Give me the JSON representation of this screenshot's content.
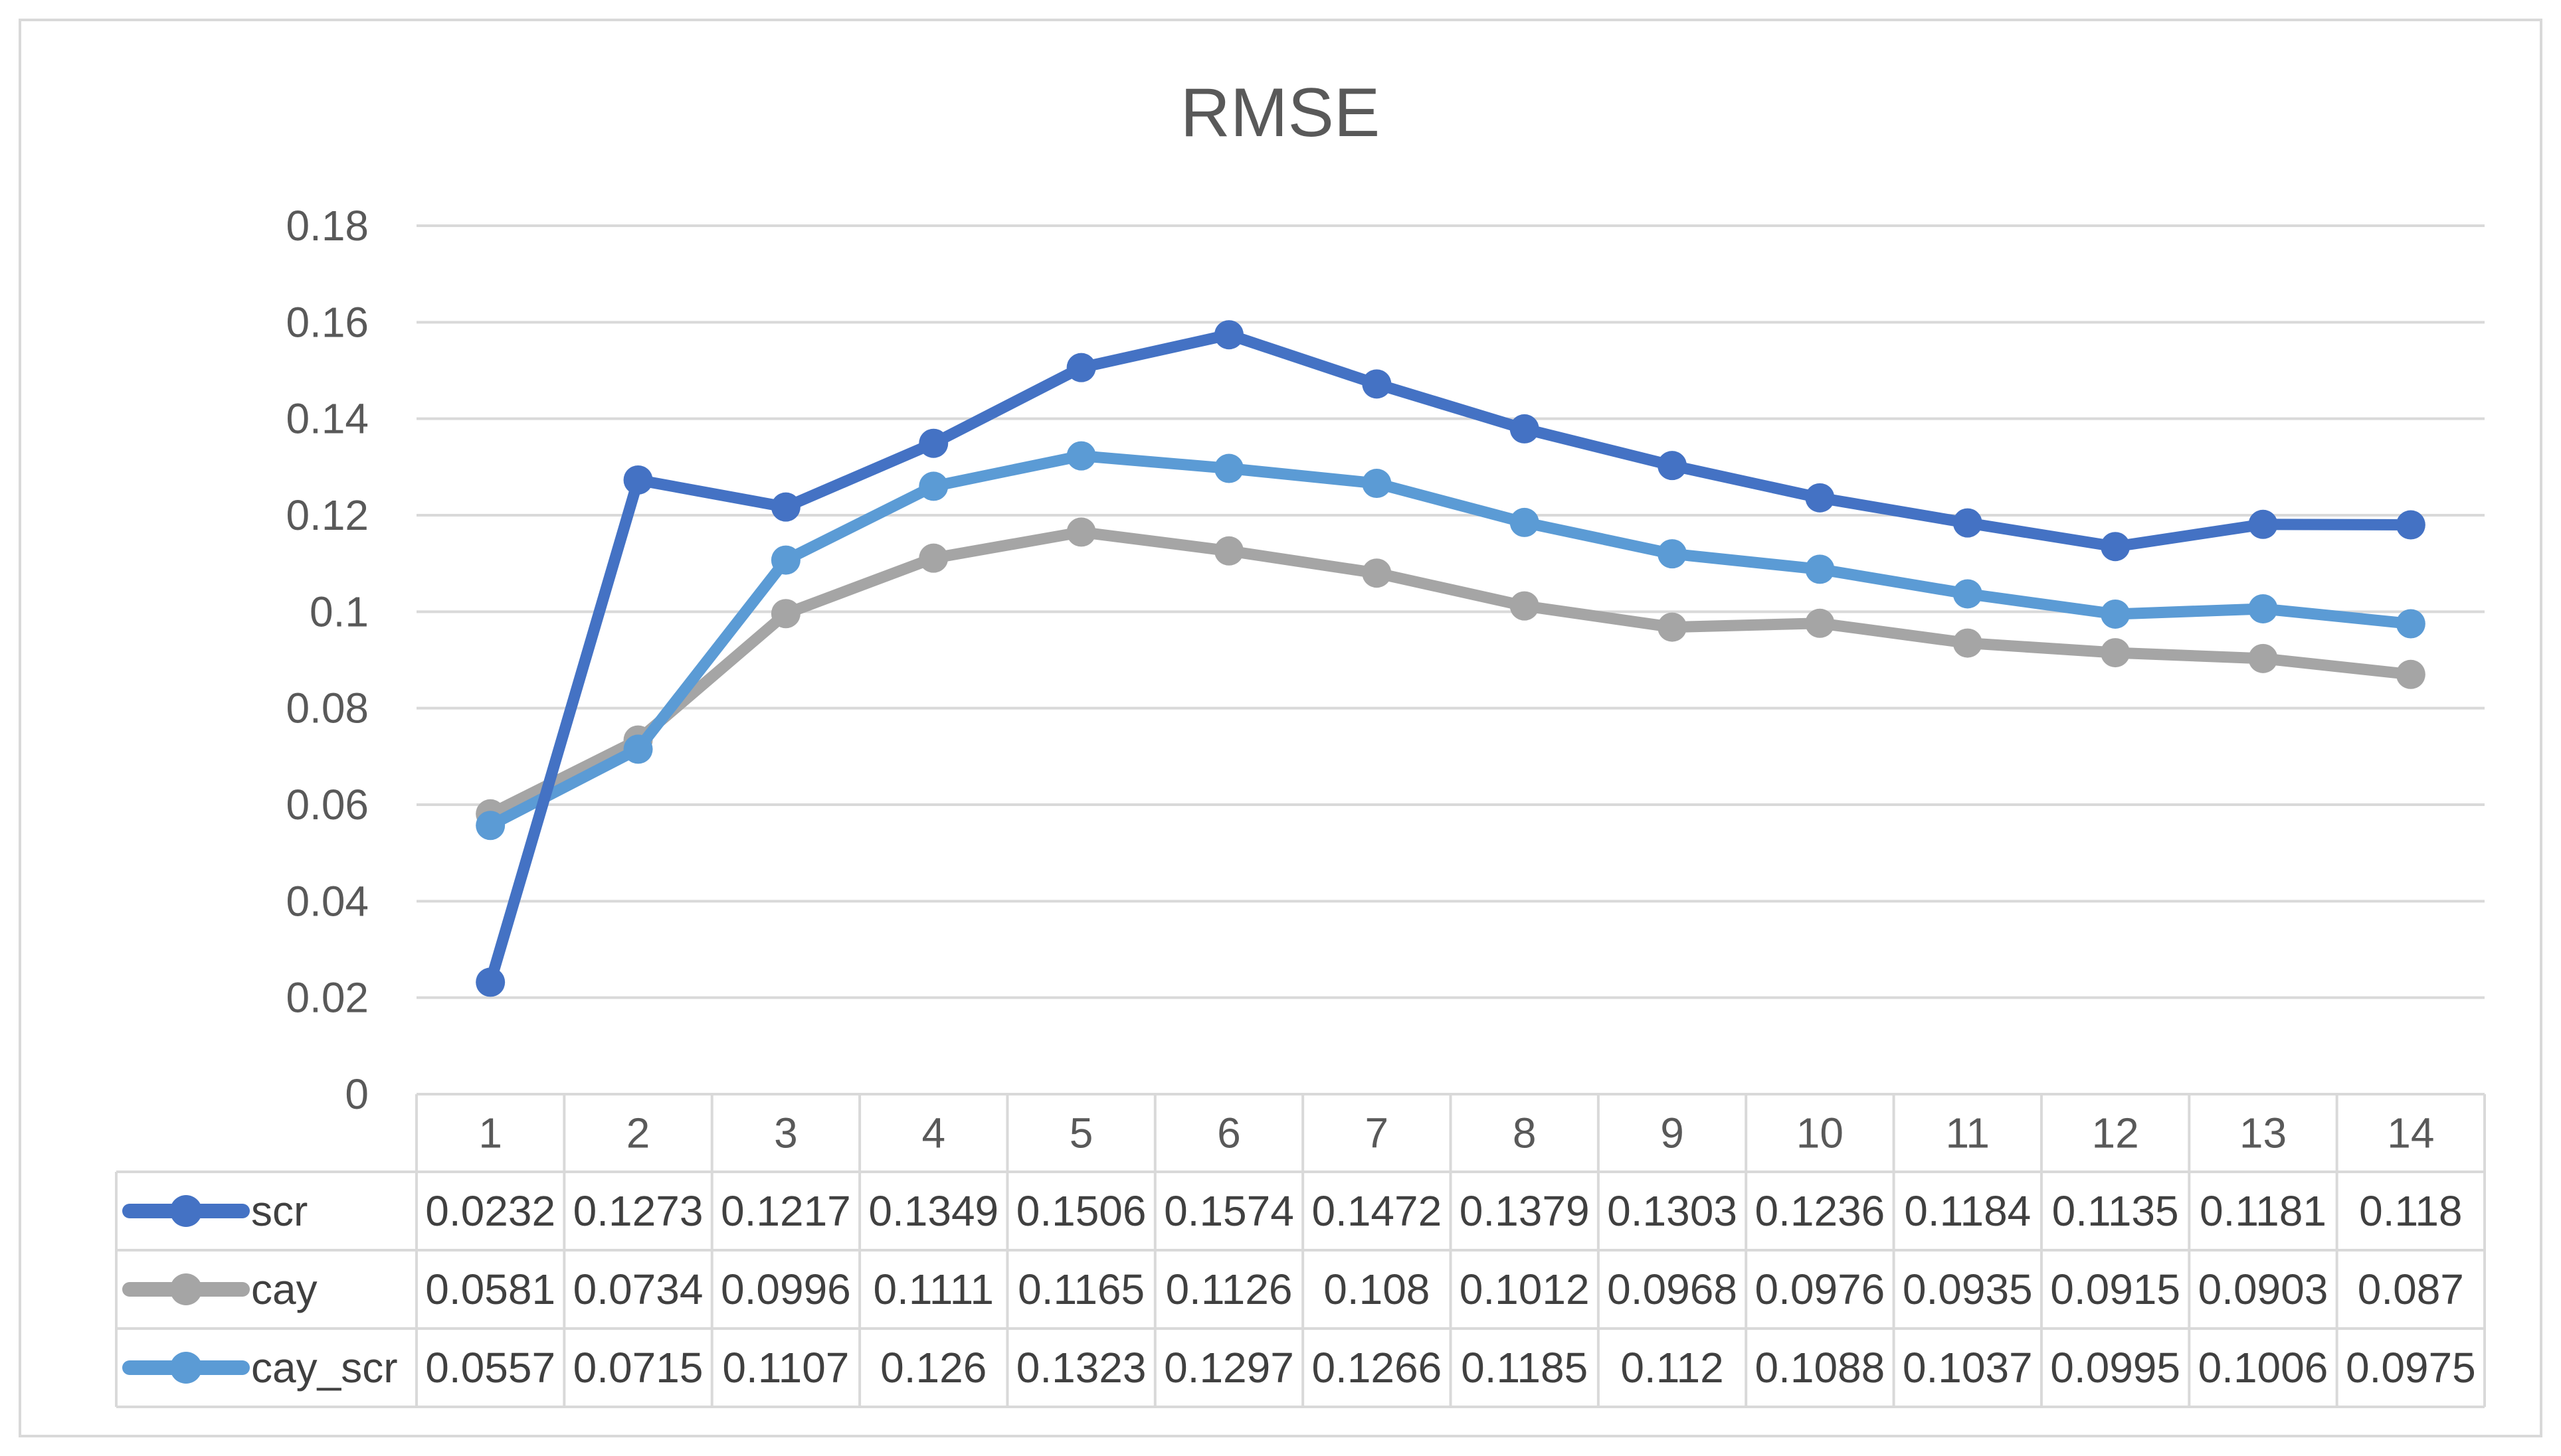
{
  "chart_data": {
    "type": "line",
    "title": "RMSE",
    "xlabel": "",
    "ylabel": "",
    "ylim": [
      0,
      0.18
    ],
    "yticks": [
      0,
      0.02,
      0.04,
      0.06,
      0.08,
      0.1,
      0.12,
      0.14,
      0.16,
      0.18
    ],
    "ytick_labels": [
      "0",
      "0.02",
      "0.04",
      "0.06",
      "0.08",
      "0.1",
      "0.12",
      "0.14",
      "0.16",
      "0.18"
    ],
    "grid": true,
    "legend": "data-table-left",
    "categories": [
      "1",
      "2",
      "3",
      "4",
      "5",
      "6",
      "7",
      "8",
      "9",
      "10",
      "11",
      "12",
      "13",
      "14"
    ],
    "series": [
      {
        "name": "scr",
        "color": "#4472C4",
        "values": [
          0.0232,
          0.1273,
          0.1217,
          0.1349,
          0.1506,
          0.1574,
          0.1472,
          0.1379,
          0.1303,
          0.1236,
          0.1184,
          0.1135,
          0.1181,
          0.118
        ],
        "labels": [
          "0.0232",
          "0.1273",
          "0.1217",
          "0.1349",
          "0.1506",
          "0.1574",
          "0.1472",
          "0.1379",
          "0.1303",
          "0.1236",
          "0.1184",
          "0.1135",
          "0.1181",
          "0.118"
        ]
      },
      {
        "name": "cay",
        "color": "#A5A5A5",
        "values": [
          0.0581,
          0.0734,
          0.0996,
          0.1111,
          0.1165,
          0.1126,
          0.108,
          0.1012,
          0.0968,
          0.0976,
          0.0935,
          0.0915,
          0.0903,
          0.087
        ],
        "labels": [
          "0.0581",
          "0.0734",
          "0.0996",
          "0.1111",
          "0.1165",
          "0.1126",
          "0.108",
          "0.1012",
          "0.0968",
          "0.0976",
          "0.0935",
          "0.0915",
          "0.0903",
          "0.087"
        ]
      },
      {
        "name": "cay_scr",
        "color": "#5B9BD5",
        "values": [
          0.0557,
          0.0715,
          0.1107,
          0.126,
          0.1323,
          0.1297,
          0.1266,
          0.1185,
          0.112,
          0.1088,
          0.1037,
          0.0995,
          0.1006,
          0.0975
        ],
        "labels": [
          "0.0557",
          "0.0715",
          "0.1107",
          "0.126",
          "0.1323",
          "0.1297",
          "0.1266",
          "0.1185",
          "0.112",
          "0.1088",
          "0.1037",
          "0.0995",
          "0.1006",
          "0.0975"
        ]
      }
    ]
  }
}
